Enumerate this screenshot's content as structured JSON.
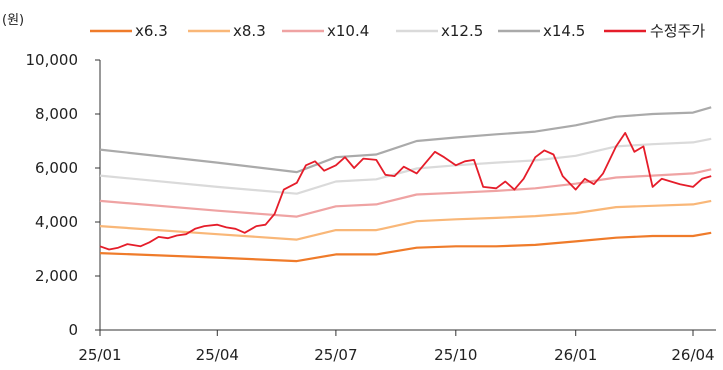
{
  "chart_data": {
    "type": "line",
    "unit_label": "(원)",
    "y_ticks": [
      "10,000",
      "8,000",
      "6,000",
      "4,000",
      "2,000",
      "0"
    ],
    "y_tick_values": [
      10000,
      8000,
      6000,
      4000,
      2000,
      0
    ],
    "x_ticks": [
      "25/01",
      "25/04",
      "25/07",
      "25/10",
      "26/01",
      "26/04"
    ],
    "x_tick_dates": [
      "2025-01",
      "2025-04",
      "2025-07",
      "2025-10",
      "2026-01",
      "2026-04"
    ],
    "x_range": [
      "2025-01",
      "2026-04"
    ],
    "ylim": [
      0,
      10000
    ],
    "grid": false,
    "legend_position": "top",
    "series": [
      {
        "name": "x6.3",
        "color": "#ef7b2a",
        "x": [
          "2025-01",
          "2025-04",
          "2025-06",
          "2025-07",
          "2025-08",
          "2025-09",
          "2025-10",
          "2025-11",
          "2025-12",
          "2026-01",
          "2026-02",
          "2026-03",
          "2026-04",
          "2026-04-15"
        ],
        "values": [
          2850,
          2680,
          2550,
          2800,
          2800,
          3050,
          3100,
          3100,
          3150,
          3280,
          3420,
          3480,
          3480,
          3600
        ]
      },
      {
        "name": "x8.3",
        "color": "#f9b778",
        "x": [
          "2025-01",
          "2025-04",
          "2025-06",
          "2025-07",
          "2025-08",
          "2025-09",
          "2025-10",
          "2025-11",
          "2025-12",
          "2026-01",
          "2026-02",
          "2026-03",
          "2026-04",
          "2026-04-15"
        ],
        "values": [
          3850,
          3550,
          3350,
          3700,
          3700,
          4030,
          4100,
          4150,
          4220,
          4330,
          4550,
          4600,
          4650,
          4780
        ]
      },
      {
        "name": "x10.4",
        "color": "#efa3a3",
        "x": [
          "2025-01",
          "2025-04",
          "2025-06",
          "2025-07",
          "2025-08",
          "2025-09",
          "2025-10",
          "2025-11",
          "2025-12",
          "2026-01",
          "2026-02",
          "2026-03",
          "2026-04",
          "2026-04-15"
        ],
        "values": [
          4780,
          4420,
          4200,
          4580,
          4650,
          5020,
          5080,
          5150,
          5250,
          5420,
          5650,
          5720,
          5800,
          5950
        ]
      },
      {
        "name": "x12.5",
        "color": "#dadada",
        "x": [
          "2025-01",
          "2025-04",
          "2025-06",
          "2025-07",
          "2025-08",
          "2025-09",
          "2025-10",
          "2025-11",
          "2025-12",
          "2026-01",
          "2026-02",
          "2026-03",
          "2026-04",
          "2026-04-15"
        ],
        "values": [
          5720,
          5300,
          5050,
          5500,
          5580,
          5980,
          6100,
          6200,
          6280,
          6450,
          6800,
          6880,
          6950,
          7080
        ]
      },
      {
        "name": "x14.5",
        "color": "#aaaaaa",
        "x": [
          "2025-01",
          "2025-04",
          "2025-06",
          "2025-07",
          "2025-08",
          "2025-09",
          "2025-10",
          "2025-11",
          "2025-12",
          "2026-01",
          "2026-02",
          "2026-03",
          "2026-04",
          "2026-04-15"
        ],
        "values": [
          6680,
          6200,
          5850,
          6400,
          6500,
          7000,
          7130,
          7250,
          7350,
          7580,
          7900,
          8000,
          8050,
          8250
        ]
      },
      {
        "name": "수정주가",
        "color": "#e51d2a",
        "x": [
          "2025-01-01",
          "2025-01-08",
          "2025-01-15",
          "2025-01-22",
          "2025-02-01",
          "2025-02-08",
          "2025-02-15",
          "2025-02-22",
          "2025-03-01",
          "2025-03-08",
          "2025-03-15",
          "2025-03-22",
          "2025-04-01",
          "2025-04-08",
          "2025-04-15",
          "2025-04-22",
          "2025-05-01",
          "2025-05-08",
          "2025-05-15",
          "2025-05-22",
          "2025-06-01",
          "2025-06-08",
          "2025-06-15",
          "2025-06-22",
          "2025-07-01",
          "2025-07-08",
          "2025-07-15",
          "2025-07-22",
          "2025-08-01",
          "2025-08-08",
          "2025-08-15",
          "2025-08-22",
          "2025-09-01",
          "2025-09-08",
          "2025-09-15",
          "2025-09-22",
          "2025-10-01",
          "2025-10-08",
          "2025-10-15",
          "2025-10-22",
          "2025-11-01",
          "2025-11-08",
          "2025-11-15",
          "2025-11-22",
          "2025-12-01",
          "2025-12-08",
          "2025-12-15",
          "2025-12-22",
          "2026-01-01",
          "2026-01-08",
          "2026-01-15",
          "2026-01-22",
          "2026-02-01",
          "2026-02-08",
          "2026-02-15",
          "2026-02-22",
          "2026-03-01",
          "2026-03-08",
          "2026-03-15",
          "2026-03-22",
          "2026-04-01",
          "2026-04-08",
          "2026-04-15"
        ],
        "values": [
          3100,
          2980,
          3050,
          3180,
          3100,
          3250,
          3450,
          3400,
          3500,
          3550,
          3750,
          3850,
          3900,
          3800,
          3750,
          3600,
          3850,
          3900,
          4300,
          5200,
          5450,
          6100,
          6250,
          5900,
          6100,
          6400,
          6000,
          6350,
          6300,
          5750,
          5700,
          6050,
          5800,
          6200,
          6600,
          6400,
          6100,
          6250,
          6300,
          5300,
          5250,
          5500,
          5200,
          5600,
          6400,
          6650,
          6500,
          5700,
          5200,
          5600,
          5400,
          5800,
          6800,
          7300,
          6600,
          6800,
          5300,
          5600,
          5500,
          5400,
          5300,
          5600,
          5700
        ]
      }
    ]
  }
}
